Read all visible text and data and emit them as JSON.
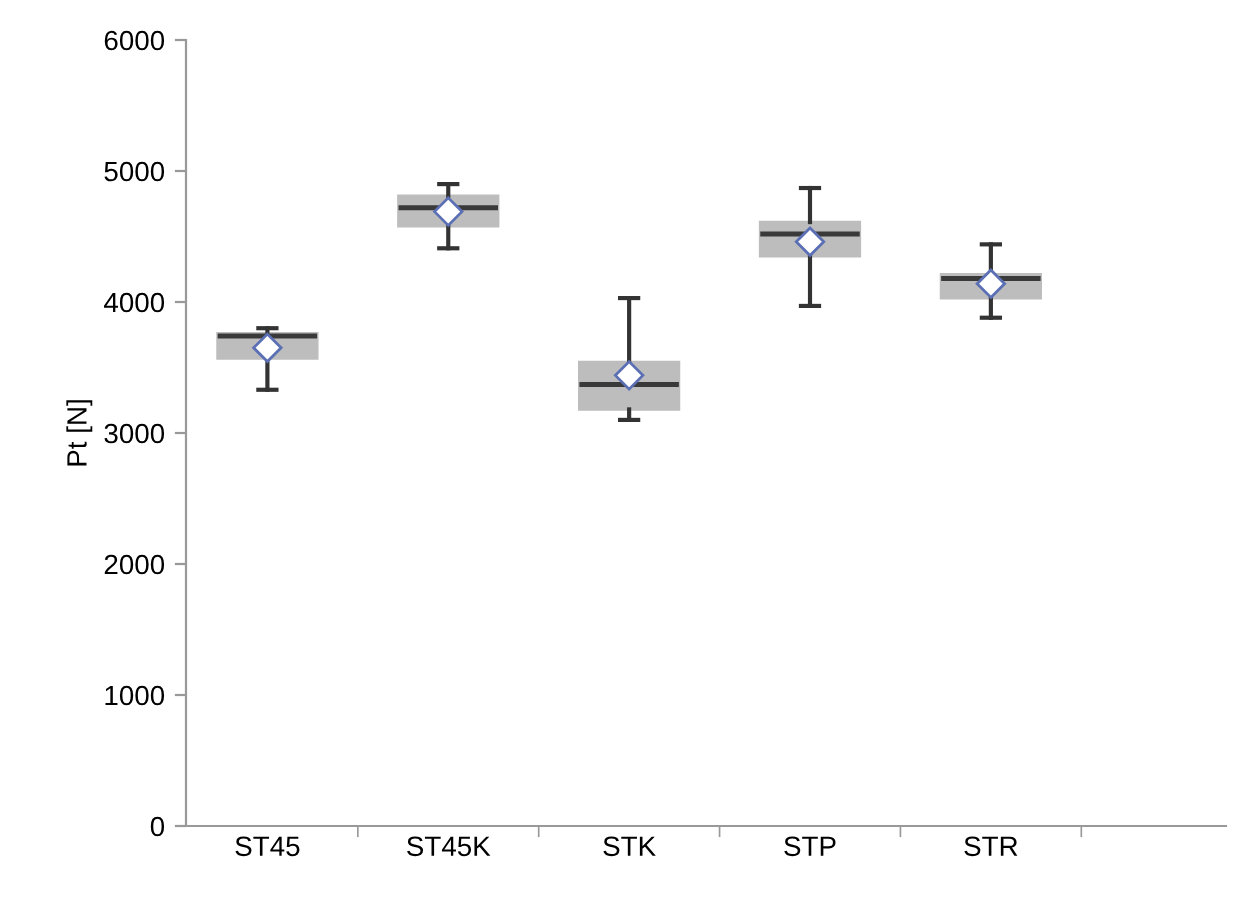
{
  "chart_data": {
    "type": "box",
    "ylabel": "Pt [N]",
    "categories": [
      "ST45",
      "ST45K",
      "STK",
      "STP",
      "STR"
    ],
    "boxes": [
      {
        "low": 3330,
        "q1": 3570,
        "median": 3740,
        "q3": 3760,
        "high": 3800,
        "mean": 3650
      },
      {
        "low": 4410,
        "q1": 4580,
        "median": 4720,
        "q3": 4810,
        "high": 4900,
        "mean": 4690
      },
      {
        "low": 3100,
        "q1": 3180,
        "median": 3370,
        "q3": 3540,
        "high": 4030,
        "mean": 3440
      },
      {
        "low": 3970,
        "q1": 4350,
        "median": 4520,
        "q3": 4610,
        "high": 4870,
        "mean": 4460
      },
      {
        "low": 3880,
        "q1": 4030,
        "median": 4180,
        "q3": 4210,
        "high": 4440,
        "mean": 4140
      }
    ],
    "color": "#bdbdbd",
    "ylim": [
      0,
      6000
    ],
    "yticks": [
      0,
      1000,
      2000,
      3000,
      4000,
      5000,
      6000
    ],
    "grid": false,
    "marker": "diamond"
  }
}
